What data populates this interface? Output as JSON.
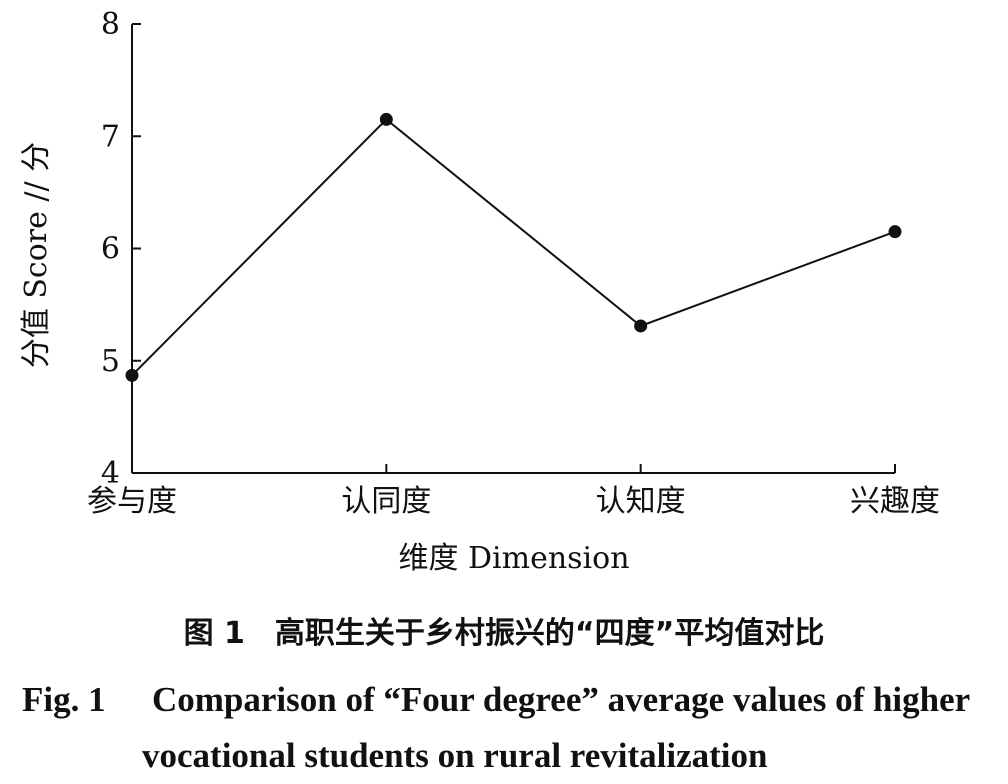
{
  "chart_data": {
    "type": "line",
    "categories": [
      "参与度",
      "认同度",
      "认知度",
      "兴趣度"
    ],
    "series": [
      {
        "values": [
          4.87,
          7.15,
          5.31,
          6.15
        ]
      }
    ],
    "ylabel": "分值 Score // 分",
    "xlabel": "维度 Dimension",
    "ylim": [
      4,
      8
    ],
    "yticks": [
      "4",
      "5",
      "6",
      "7",
      "8"
    ],
    "grid": false,
    "marker": "filled-circle",
    "color": "#111111"
  },
  "caption": {
    "cn": "图 1　高职生关于乡村振兴的“四度”平均值对比",
    "en_fig": "Fig. 1",
    "en_line1": "Comparison of “Four degree” average values of higher",
    "en_line2": "vocational students on rural revitalization"
  }
}
